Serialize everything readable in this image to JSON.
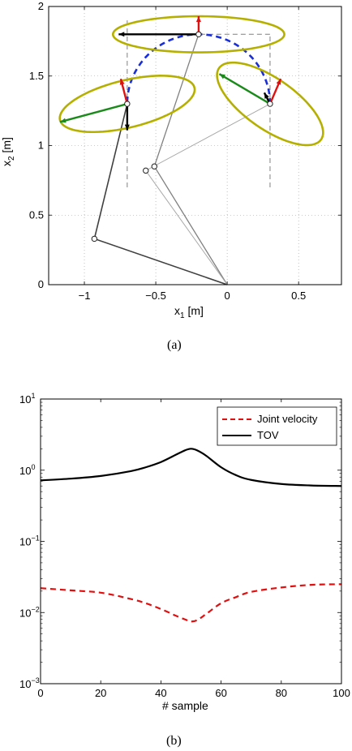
{
  "chart_data": [
    {
      "type": "line",
      "caption": "(a)",
      "xlabel": "x",
      "xlabel_sub": "1",
      "xlabel_unit": " [m]",
      "ylabel": "x",
      "ylabel_sub": "2",
      "ylabel_unit": " [m]",
      "xlim": [
        -1.25,
        0.8
      ],
      "ylim": [
        0,
        2
      ],
      "grid": true,
      "xticks": [
        -1,
        -0.5,
        0,
        0.5
      ],
      "xtick_labels": [
        "−1",
        "−0.5",
        "0",
        "0.5"
      ],
      "yticks": [
        0,
        0.5,
        1,
        1.5,
        2
      ],
      "ytick_labels": [
        "0",
        "0.5",
        "1",
        "1.5",
        "2"
      ],
      "colors": {
        "ellipse": "#b5b000",
        "trajectory": "#1a2fd6",
        "green": "#1a8a1a",
        "red": "#e01010",
        "black": "#000000",
        "arm_dark": "#404040",
        "arm_mid": "#808080",
        "arm_light": "#a8a8a8",
        "dashed_guide": "#808080"
      },
      "base": [
        0,
        0
      ],
      "arms": [
        {
          "name": "arm-pose-left",
          "joints": [
            [
              0,
              0
            ],
            [
              -0.93,
              0.33
            ],
            [
              -0.7,
              1.3
            ]
          ],
          "color": "arm_dark",
          "width": 1.6
        },
        {
          "name": "arm-pose-top",
          "joints": [
            [
              0,
              0
            ],
            [
              -0.51,
              0.85
            ],
            [
              -0.2,
              1.8
            ]
          ],
          "color": "arm_mid",
          "width": 1.3
        },
        {
          "name": "arm-pose-right",
          "joints": [
            [
              0,
              0
            ],
            [
              -0.57,
              0.82
            ],
            [
              0.3,
              1.3
            ]
          ],
          "color": "arm_light",
          "width": 1.0
        }
      ],
      "trajectory_center": [
        -0.2,
        1.3
      ],
      "trajectory_radius": 0.5,
      "ellipses": [
        {
          "name": "ellipse-left",
          "center": [
            -0.7,
            1.3
          ],
          "semi_major": 0.485,
          "semi_minor": 0.17,
          "angle_deg": 14
        },
        {
          "name": "ellipse-top",
          "center": [
            -0.2,
            1.8
          ],
          "semi_major": 0.6,
          "semi_minor": 0.13,
          "angle_deg": 0
        },
        {
          "name": "ellipse-right",
          "center": [
            0.3,
            1.3
          ],
          "semi_major": 0.44,
          "semi_minor": 0.18,
          "angle_deg": -36
        }
      ],
      "arrows": [
        {
          "name": "velocity-arrow-left-green",
          "from": [
            -0.7,
            1.3
          ],
          "to": [
            -1.17,
            1.17
          ],
          "color": "green"
        },
        {
          "name": "velocity-arrow-left-red",
          "from": [
            -0.7,
            1.3
          ],
          "to": [
            -0.745,
            1.48
          ],
          "color": "red"
        },
        {
          "name": "velocity-arrow-left-black",
          "from": [
            -0.7,
            1.3
          ],
          "to": [
            -0.7,
            1.11
          ],
          "color": "black"
        },
        {
          "name": "velocity-arrow-top-black",
          "from": [
            -0.2,
            1.8
          ],
          "to": [
            -0.76,
            1.8
          ],
          "color": "black"
        },
        {
          "name": "velocity-arrow-top-red",
          "from": [
            -0.2,
            1.8
          ],
          "to": [
            -0.2,
            1.93
          ],
          "color": "red"
        },
        {
          "name": "velocity-arrow-right-green",
          "from": [
            0.3,
            1.3
          ],
          "to": [
            -0.055,
            1.515
          ],
          "color": "green"
        },
        {
          "name": "velocity-arrow-right-red",
          "from": [
            0.3,
            1.3
          ],
          "to": [
            0.375,
            1.48
          ],
          "color": "red"
        },
        {
          "name": "velocity-arrow-right-black",
          "from": [
            0.3,
            1.3
          ],
          "to": [
            0.26,
            1.38
          ],
          "color": "black"
        }
      ],
      "guides": [
        {
          "name": "guide-vertical-left",
          "from": [
            -0.7,
            0.7
          ],
          "to": [
            -0.7,
            1.9
          ]
        },
        {
          "name": "guide-vertical-right",
          "from": [
            0.3,
            0.7
          ],
          "to": [
            0.3,
            1.8
          ]
        },
        {
          "name": "guide-horizontal-top",
          "from": [
            -0.7,
            1.8
          ],
          "to": [
            0.3,
            1.8
          ]
        }
      ]
    },
    {
      "type": "line",
      "caption": "(b)",
      "xlabel": "# sample",
      "ylabel": "",
      "xlim": [
        0,
        100
      ],
      "ylim": [
        0.001,
        10
      ],
      "yscale": "log",
      "grid": false,
      "legend_position": "top-right",
      "xticks": [
        0,
        20,
        40,
        60,
        80,
        100
      ],
      "xtick_labels": [
        "0",
        "20",
        "40",
        "60",
        "80",
        "100"
      ],
      "yticks": [
        0.001,
        0.01,
        0.1,
        1,
        10
      ],
      "ytick_base": [
        "10",
        "10",
        "10",
        "10",
        "10"
      ],
      "ytick_exp": [
        "−3",
        "−2",
        "−1",
        "0",
        "1"
      ],
      "x": [
        0,
        10,
        20,
        30,
        35,
        40,
        45,
        48,
        50,
        52,
        55,
        60,
        65,
        70,
        80,
        90,
        100
      ],
      "series": [
        {
          "name": "Joint velocity",
          "color": "#e01010",
          "dashed": true,
          "values": [
            0.022,
            0.0205,
            0.019,
            0.0155,
            0.0135,
            0.0112,
            0.009,
            0.008,
            0.0075,
            0.0078,
            0.0095,
            0.0135,
            0.0165,
            0.0195,
            0.0225,
            0.0245,
            0.025
          ]
        },
        {
          "name": "TOV",
          "color": "#000000",
          "dashed": false,
          "values": [
            0.72,
            0.76,
            0.83,
            0.97,
            1.1,
            1.3,
            1.65,
            1.9,
            2.0,
            1.9,
            1.6,
            1.1,
            0.85,
            0.73,
            0.64,
            0.61,
            0.6
          ]
        }
      ]
    }
  ]
}
